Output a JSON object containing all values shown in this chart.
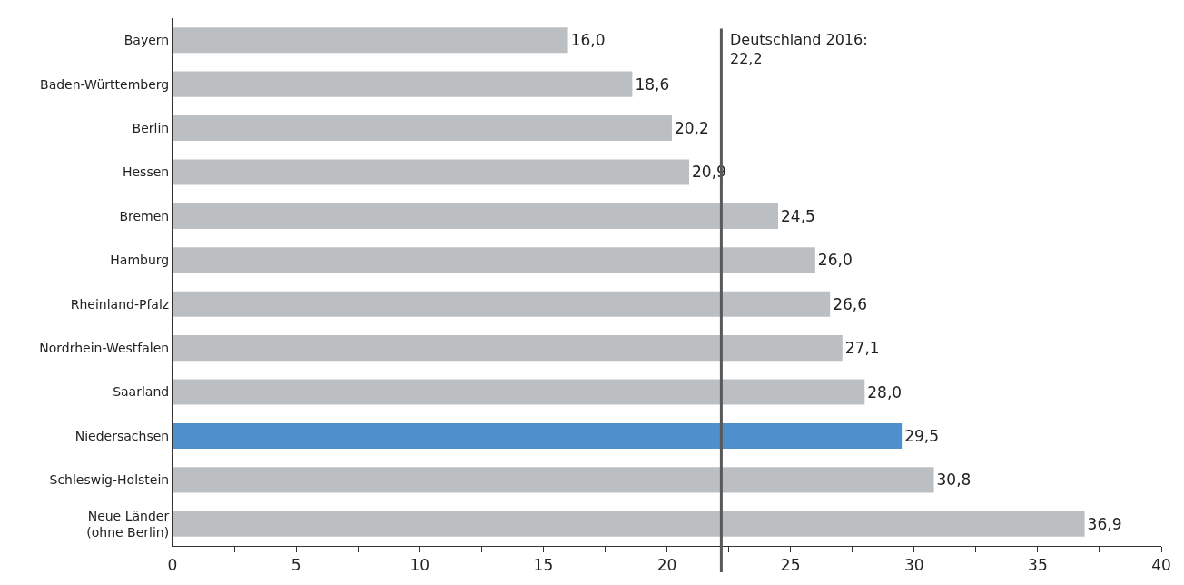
{
  "chart_data": {
    "type": "bar",
    "orientation": "horizontal",
    "categories": [
      "Bayern",
      "Baden-Württemberg",
      "Berlin",
      "Hessen",
      "Bremen",
      "Hamburg",
      "Rheinland-Pfalz",
      "Nordrhein-Westfalen",
      "Saarland",
      "Niedersachsen",
      "Schleswig-Holstein",
      "Neue Länder\n(ohne Berlin)"
    ],
    "values": [
      16.0,
      18.6,
      20.2,
      20.9,
      24.5,
      26.0,
      26.6,
      27.1,
      28.0,
      29.5,
      30.8,
      36.9
    ],
    "value_labels": [
      "16,0",
      "18,6",
      "20,2",
      "20,9",
      "24,5",
      "26,0",
      "26,6",
      "27,1",
      "28,0",
      "29,5",
      "30,8",
      "36,9"
    ],
    "colors": [
      "#bcbfc2",
      "#bcbfc2",
      "#bcbfc2",
      "#bcbfc2",
      "#bcbfc2",
      "#bcbfc2",
      "#bcbfc2",
      "#bcbfc2",
      "#bcbfc2",
      "#4f8fcc",
      "#bcbfc2",
      "#bcbfc2"
    ],
    "xlim": [
      0,
      40
    ],
    "xticks": [
      0,
      {
        "value": 2.5,
        "label": null
      },
      5,
      {
        "value": 7.5,
        "label": null
      },
      10,
      {
        "value": 12.5,
        "label": null
      },
      15,
      {
        "value": 17.5,
        "label": null
      },
      20,
      {
        "value": 22.5,
        "label": null
      },
      25,
      {
        "value": 27.5,
        "label": null
      },
      30,
      {
        "value": 32.5,
        "label": null
      },
      35,
      {
        "value": 37.5,
        "label": null
      },
      40
    ],
    "ref_lines": [
      {
        "axis": "x",
        "value": 22.2,
        "label": "Deutschland 2016:\n22,2",
        "color": "#595959"
      }
    ]
  }
}
